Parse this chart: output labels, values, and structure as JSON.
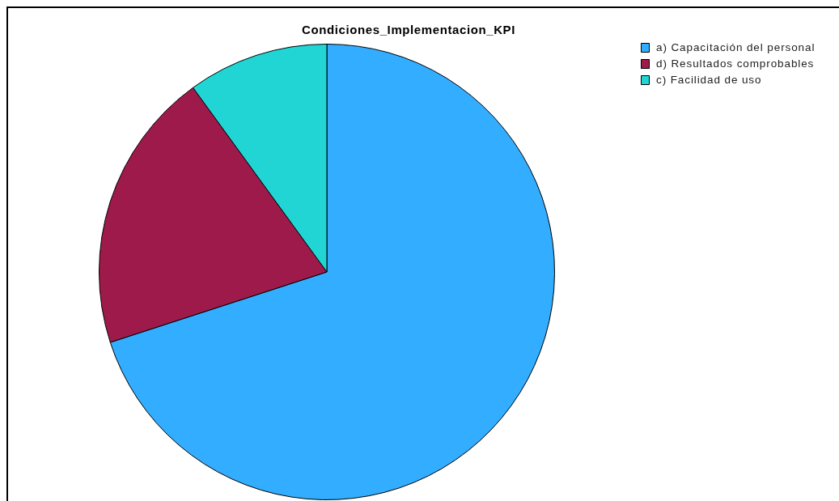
{
  "chart_data": {
    "type": "pie",
    "title": "Condiciones_Implementacion_KPI",
    "categories": [
      "a) Capacitación del personal",
      "d) Resultados comprobables",
      "c) Facilidad de uso"
    ],
    "values": [
      70,
      20,
      10
    ],
    "colors": [
      "#33adff",
      "#9e1a4b",
      "#22d5d5"
    ],
    "legend": "top right"
  }
}
